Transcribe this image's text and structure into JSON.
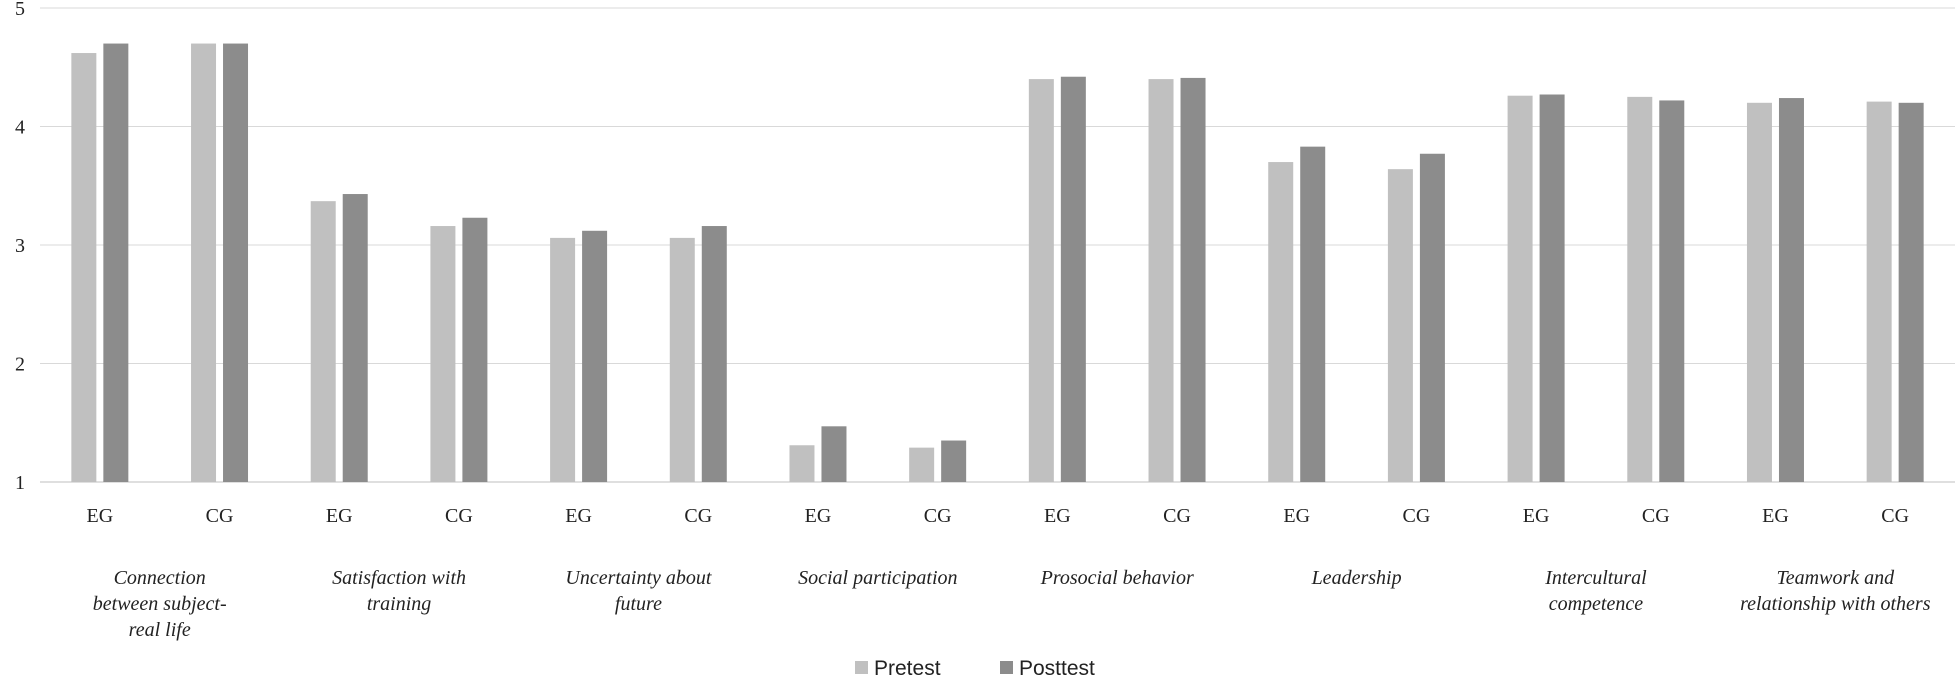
{
  "chart_data": {
    "type": "bar",
    "ylim": [
      1,
      5
    ],
    "yticks": [
      "1",
      "2",
      "3",
      "4",
      "5"
    ],
    "grid": true,
    "legend_position": "bottom",
    "categories": [
      "EG",
      "CG",
      "EG",
      "CG",
      "EG",
      "CG",
      "EG",
      "CG",
      "EG",
      "CG",
      "EG",
      "CG",
      "EG",
      "CG",
      "EG",
      "CG"
    ],
    "groups": [
      {
        "lines": [
          "Connection",
          "between subject-",
          "real life"
        ]
      },
      {
        "lines": [
          "Satisfaction with",
          "training"
        ]
      },
      {
        "lines": [
          "Uncertainty about",
          "future"
        ]
      },
      {
        "lines": [
          "Social participation"
        ]
      },
      {
        "lines": [
          "Prosocial behavior"
        ]
      },
      {
        "lines": [
          "Leadership"
        ]
      },
      {
        "lines": [
          "Intercultural",
          "competence"
        ]
      },
      {
        "lines": [
          "Teamwork and",
          "relationship with others"
        ]
      }
    ],
    "series": [
      {
        "name": "Pretest",
        "color": "#c0c0c0",
        "values": [
          4.62,
          4.7,
          3.37,
          3.16,
          3.06,
          3.06,
          1.31,
          1.29,
          4.4,
          4.4,
          3.7,
          3.64,
          4.26,
          4.25,
          4.2,
          4.21
        ]
      },
      {
        "name": "Posttest",
        "color": "#8c8c8c",
        "values": [
          4.7,
          4.7,
          3.43,
          3.23,
          3.12,
          3.16,
          1.47,
          1.35,
          4.42,
          4.41,
          3.83,
          3.77,
          4.27,
          4.22,
          4.24,
          4.2
        ]
      }
    ]
  }
}
